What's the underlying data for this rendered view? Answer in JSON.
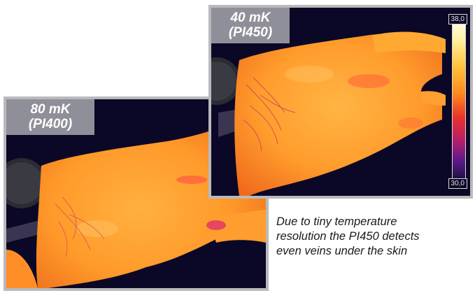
{
  "images": [
    {
      "label_line1": "80 mK",
      "label_line2": "(PI400)"
    },
    {
      "label_line1": "40 mK",
      "label_line2": "(PI450)",
      "scale_max": "38,0",
      "scale_min": "30,0"
    }
  ],
  "caption": {
    "line1": "Due to tiny temperature",
    "line2": "resolution the PI450 detects",
    "line3": "even veins under the skin"
  }
}
